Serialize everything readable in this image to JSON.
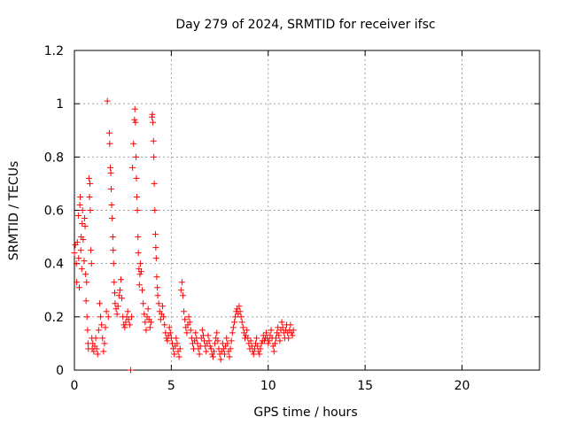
{
  "chart_data": {
    "type": "scatter",
    "title": "Day 279 of 2024, SRMTID for receiver ifsc",
    "xlabel": "GPS time / hours",
    "ylabel": "SRMTID / TECUs",
    "xlim": [
      0,
      24
    ],
    "ylim": [
      0,
      1.2
    ],
    "xticks": [
      0,
      5,
      10,
      15,
      20
    ],
    "xtick_labels": [
      "0",
      "5",
      "10",
      "15",
      "20"
    ],
    "yticks": [
      0,
      0.2,
      0.4,
      0.6,
      0.8,
      1,
      1.2
    ],
    "ytick_labels": [
      "0",
      "0.2",
      "0.4",
      "0.6",
      "0.8",
      "1",
      "1.2"
    ],
    "grid": true,
    "marker": "plus",
    "color": "#ff0000",
    "series": [
      {
        "name": "SRMTID",
        "points": [
          [
            0.0,
            0.44
          ],
          [
            0.05,
            0.47
          ],
          [
            0.1,
            0.4
          ],
          [
            0.12,
            0.33
          ],
          [
            0.15,
            0.48
          ],
          [
            0.2,
            0.58
          ],
          [
            0.22,
            0.42
          ],
          [
            0.25,
            0.31
          ],
          [
            0.28,
            0.62
          ],
          [
            0.3,
            0.65
          ],
          [
            0.33,
            0.45
          ],
          [
            0.35,
            0.5
          ],
          [
            0.38,
            0.38
          ],
          [
            0.4,
            0.55
          ],
          [
            0.42,
            0.6
          ],
          [
            0.45,
            0.49
          ],
          [
            0.5,
            0.41
          ],
          [
            0.52,
            0.57
          ],
          [
            0.55,
            0.54
          ],
          [
            0.58,
            0.36
          ],
          [
            0.6,
            0.26
          ],
          [
            0.63,
            0.33
          ],
          [
            0.65,
            0.2
          ],
          [
            0.68,
            0.15
          ],
          [
            0.7,
            0.1
          ],
          [
            0.72,
            0.08
          ],
          [
            0.75,
            0.72
          ],
          [
            0.78,
            0.65
          ],
          [
            0.8,
            0.7
          ],
          [
            0.82,
            0.6
          ],
          [
            0.85,
            0.45
          ],
          [
            0.88,
            0.4
          ],
          [
            0.9,
            0.12
          ],
          [
            0.92,
            0.08
          ],
          [
            0.95,
            0.1
          ],
          [
            1.0,
            0.07
          ],
          [
            1.05,
            0.09
          ],
          [
            1.1,
            0.12
          ],
          [
            1.15,
            0.08
          ],
          [
            1.2,
            0.06
          ],
          [
            1.25,
            0.15
          ],
          [
            1.3,
            0.25
          ],
          [
            1.35,
            0.2
          ],
          [
            1.4,
            0.17
          ],
          [
            1.45,
            0.12
          ],
          [
            1.5,
            0.07
          ],
          [
            1.55,
            0.1
          ],
          [
            1.6,
            0.16
          ],
          [
            1.65,
            0.22
          ],
          [
            1.7,
            1.01
          ],
          [
            1.75,
            0.2
          ],
          [
            1.8,
            0.89
          ],
          [
            1.82,
            0.85
          ],
          [
            1.85,
            0.76
          ],
          [
            1.88,
            0.74
          ],
          [
            1.9,
            0.68
          ],
          [
            1.92,
            0.62
          ],
          [
            1.95,
            0.57
          ],
          [
            1.98,
            0.5
          ],
          [
            2.0,
            0.45
          ],
          [
            2.02,
            0.4
          ],
          [
            2.05,
            0.33
          ],
          [
            2.08,
            0.29
          ],
          [
            2.1,
            0.25
          ],
          [
            2.15,
            0.23
          ],
          [
            2.2,
            0.21
          ],
          [
            2.25,
            0.24
          ],
          [
            2.3,
            0.28
          ],
          [
            2.35,
            0.3
          ],
          [
            2.4,
            0.34
          ],
          [
            2.45,
            0.27
          ],
          [
            2.5,
            0.2
          ],
          [
            2.55,
            0.17
          ],
          [
            2.6,
            0.16
          ],
          [
            2.65,
            0.18
          ],
          [
            2.7,
            0.2
          ],
          [
            2.75,
            0.22
          ],
          [
            2.8,
            0.19
          ],
          [
            2.85,
            0.17
          ],
          [
            2.9,
            0.0
          ],
          [
            2.95,
            0.2
          ],
          [
            3.0,
            0.76
          ],
          [
            3.05,
            0.85
          ],
          [
            3.1,
            0.94
          ],
          [
            3.12,
            0.98
          ],
          [
            3.15,
            0.93
          ],
          [
            3.18,
            0.8
          ],
          [
            3.2,
            0.72
          ],
          [
            3.22,
            0.65
          ],
          [
            3.25,
            0.6
          ],
          [
            3.28,
            0.5
          ],
          [
            3.3,
            0.44
          ],
          [
            3.33,
            0.38
          ],
          [
            3.35,
            0.32
          ],
          [
            3.38,
            0.36
          ],
          [
            3.4,
            0.4
          ],
          [
            3.45,
            0.37
          ],
          [
            3.5,
            0.3
          ],
          [
            3.55,
            0.25
          ],
          [
            3.6,
            0.21
          ],
          [
            3.65,
            0.18
          ],
          [
            3.7,
            0.15
          ],
          [
            3.75,
            0.2
          ],
          [
            3.8,
            0.23
          ],
          [
            3.85,
            0.19
          ],
          [
            3.9,
            0.16
          ],
          [
            3.95,
            0.18
          ],
          [
            4.0,
            0.95
          ],
          [
            4.02,
            0.96
          ],
          [
            4.05,
            0.93
          ],
          [
            4.08,
            0.86
          ],
          [
            4.1,
            0.8
          ],
          [
            4.12,
            0.7
          ],
          [
            4.15,
            0.6
          ],
          [
            4.18,
            0.51
          ],
          [
            4.2,
            0.46
          ],
          [
            4.22,
            0.42
          ],
          [
            4.25,
            0.35
          ],
          [
            4.28,
            0.31
          ],
          [
            4.3,
            0.28
          ],
          [
            4.35,
            0.25
          ],
          [
            4.4,
            0.22
          ],
          [
            4.45,
            0.19
          ],
          [
            4.5,
            0.21
          ],
          [
            4.55,
            0.24
          ],
          [
            4.6,
            0.2
          ],
          [
            4.65,
            0.17
          ],
          [
            4.7,
            0.14
          ],
          [
            4.75,
            0.12
          ],
          [
            4.8,
            0.11
          ],
          [
            4.85,
            0.13
          ],
          [
            4.9,
            0.16
          ],
          [
            4.95,
            0.14
          ],
          [
            5.0,
            0.12
          ],
          [
            5.05,
            0.1
          ],
          [
            5.1,
            0.08
          ],
          [
            5.15,
            0.06
          ],
          [
            5.2,
            0.09
          ],
          [
            5.25,
            0.12
          ],
          [
            5.3,
            0.1
          ],
          [
            5.35,
            0.07
          ],
          [
            5.4,
            0.05
          ],
          [
            5.45,
            0.08
          ],
          [
            5.5,
            0.3
          ],
          [
            5.55,
            0.33
          ],
          [
            5.6,
            0.28
          ],
          [
            5.65,
            0.22
          ],
          [
            5.7,
            0.19
          ],
          [
            5.75,
            0.16
          ],
          [
            5.8,
            0.14
          ],
          [
            5.85,
            0.17
          ],
          [
            5.9,
            0.2
          ],
          [
            5.95,
            0.18
          ],
          [
            6.0,
            0.15
          ],
          [
            6.05,
            0.12
          ],
          [
            6.1,
            0.1
          ],
          [
            6.15,
            0.08
          ],
          [
            6.2,
            0.11
          ],
          [
            6.25,
            0.14
          ],
          [
            6.3,
            0.12
          ],
          [
            6.35,
            0.1
          ],
          [
            6.4,
            0.08
          ],
          [
            6.45,
            0.06
          ],
          [
            6.5,
            0.09
          ],
          [
            6.55,
            0.12
          ],
          [
            6.6,
            0.15
          ],
          [
            6.65,
            0.13
          ],
          [
            6.7,
            0.11
          ],
          [
            6.75,
            0.09
          ],
          [
            6.8,
            0.07
          ],
          [
            6.85,
            0.1
          ],
          [
            6.9,
            0.13
          ],
          [
            6.95,
            0.11
          ],
          [
            7.0,
            0.09
          ],
          [
            7.05,
            0.08
          ],
          [
            7.1,
            0.06
          ],
          [
            7.15,
            0.05
          ],
          [
            7.2,
            0.07
          ],
          [
            7.25,
            0.1
          ],
          [
            7.3,
            0.12
          ],
          [
            7.35,
            0.14
          ],
          [
            7.4,
            0.11
          ],
          [
            7.45,
            0.08
          ],
          [
            7.5,
            0.06
          ],
          [
            7.55,
            0.04
          ],
          [
            7.6,
            0.07
          ],
          [
            7.65,
            0.1
          ],
          [
            7.7,
            0.08
          ],
          [
            7.75,
            0.06
          ],
          [
            7.8,
            0.09
          ],
          [
            7.85,
            0.12
          ],
          [
            7.9,
            0.1
          ],
          [
            7.95,
            0.07
          ],
          [
            8.0,
            0.05
          ],
          [
            8.05,
            0.08
          ],
          [
            8.1,
            0.11
          ],
          [
            8.15,
            0.14
          ],
          [
            8.2,
            0.16
          ],
          [
            8.25,
            0.18
          ],
          [
            8.3,
            0.2
          ],
          [
            8.35,
            0.22
          ],
          [
            8.4,
            0.23
          ],
          [
            8.45,
            0.21
          ],
          [
            8.5,
            0.24
          ],
          [
            8.55,
            0.22
          ],
          [
            8.6,
            0.2
          ],
          [
            8.65,
            0.18
          ],
          [
            8.7,
            0.16
          ],
          [
            8.75,
            0.14
          ],
          [
            8.8,
            0.12
          ],
          [
            8.85,
            0.13
          ],
          [
            8.9,
            0.15
          ],
          [
            8.95,
            0.12
          ],
          [
            9.0,
            0.1
          ],
          [
            9.05,
            0.08
          ],
          [
            9.1,
            0.11
          ],
          [
            9.15,
            0.09
          ],
          [
            9.2,
            0.07
          ],
          [
            9.25,
            0.06
          ],
          [
            9.3,
            0.08
          ],
          [
            9.35,
            0.1
          ],
          [
            9.4,
            0.12
          ],
          [
            9.45,
            0.09
          ],
          [
            9.5,
            0.07
          ],
          [
            9.55,
            0.06
          ],
          [
            9.6,
            0.08
          ],
          [
            9.65,
            0.1
          ],
          [
            9.7,
            0.11
          ],
          [
            9.75,
            0.13
          ],
          [
            9.8,
            0.11
          ],
          [
            9.85,
            0.12
          ],
          [
            9.9,
            0.14
          ],
          [
            9.95,
            0.12
          ],
          [
            10.0,
            0.1
          ],
          [
            10.05,
            0.11
          ],
          [
            10.1,
            0.13
          ],
          [
            10.15,
            0.15
          ],
          [
            10.2,
            0.12
          ],
          [
            10.25,
            0.09
          ],
          [
            10.3,
            0.07
          ],
          [
            10.35,
            0.1
          ],
          [
            10.4,
            0.12
          ],
          [
            10.45,
            0.14
          ],
          [
            10.5,
            0.16
          ],
          [
            10.55,
            0.13
          ],
          [
            10.6,
            0.11
          ],
          [
            10.65,
            0.15
          ],
          [
            10.7,
            0.18
          ],
          [
            10.75,
            0.16
          ],
          [
            10.8,
            0.14
          ],
          [
            10.85,
            0.12
          ],
          [
            10.9,
            0.15
          ],
          [
            10.95,
            0.17
          ],
          [
            11.0,
            0.14
          ],
          [
            11.05,
            0.12
          ],
          [
            11.1,
            0.15
          ],
          [
            11.15,
            0.17
          ],
          [
            11.2,
            0.14
          ],
          [
            11.25,
            0.13
          ],
          [
            11.3,
            0.15
          ]
        ]
      }
    ]
  }
}
